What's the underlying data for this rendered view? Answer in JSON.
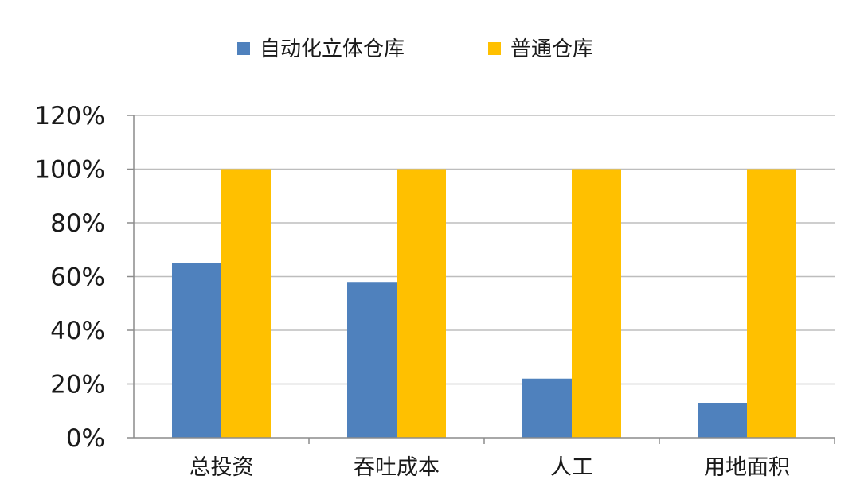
{
  "chart_data": {
    "type": "bar",
    "title": "",
    "xlabel": "",
    "ylabel": "",
    "categories": [
      "总投资",
      "吞吐成本",
      "人工",
      "用地面积"
    ],
    "series": [
      {
        "name": "自动化立体仓库",
        "color": "#4f81bd",
        "values": [
          65,
          58,
          22,
          13
        ]
      },
      {
        "name": "普通仓库",
        "color": "#ffc000",
        "values": [
          100,
          100,
          100,
          100
        ]
      }
    ],
    "ylim": [
      0,
      120
    ],
    "ytick_step": 20,
    "ytick_suffix": "%",
    "grid": true,
    "legend_position": "top-center"
  }
}
